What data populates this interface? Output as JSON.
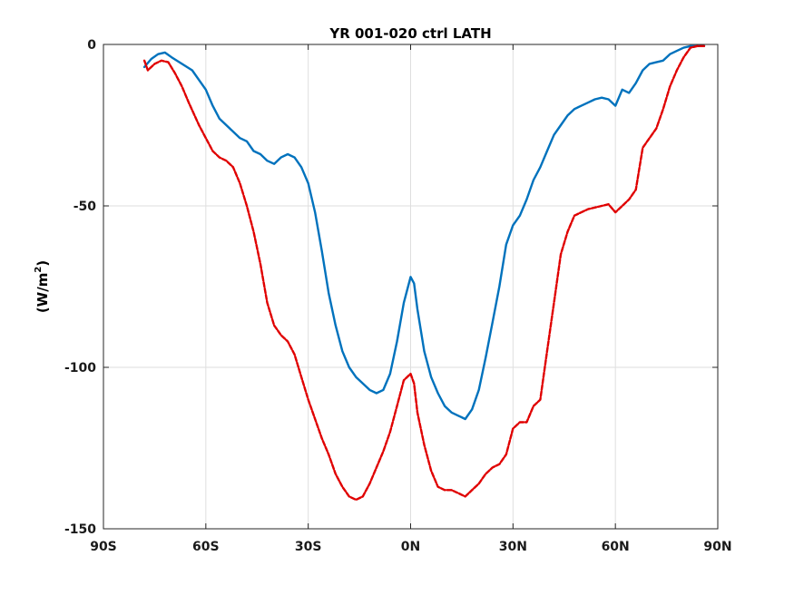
{
  "chart_data": {
    "type": "line",
    "title": "YR 001-020 ctrl LATH",
    "xlabel": "",
    "ylabel": "(W/m",
    "ylabel_sup": "2",
    "ylabel_close": ")",
    "xlim": [
      -90,
      90
    ],
    "ylim": [
      -150,
      0
    ],
    "x_ticks": [
      -90,
      -60,
      -30,
      0,
      30,
      60,
      90
    ],
    "x_tick_labels": [
      "90S",
      "60S",
      "30S",
      "0N",
      "30N",
      "60N",
      "90N"
    ],
    "y_ticks": [
      -150,
      -100,
      -50,
      0
    ],
    "y_tick_labels": [
      "-150",
      "-100",
      "-50",
      "0"
    ],
    "grid": true,
    "legend": "none",
    "series": [
      {
        "color": "#0072bd",
        "style": "solid",
        "points": [
          [
            -78,
            -7
          ],
          [
            -76,
            -4.5
          ],
          [
            -74,
            -3
          ],
          [
            -72,
            -2.5
          ],
          [
            -70,
            -4
          ],
          [
            -67,
            -6
          ],
          [
            -64,
            -8
          ],
          [
            -62,
            -11
          ],
          [
            -60,
            -14
          ],
          [
            -58,
            -19
          ],
          [
            -56,
            -23
          ],
          [
            -54,
            -25
          ],
          [
            -52,
            -27
          ],
          [
            -50,
            -29
          ],
          [
            -48,
            -30
          ],
          [
            -46,
            -33
          ],
          [
            -44,
            -34
          ],
          [
            -42,
            -36
          ],
          [
            -40,
            -37
          ],
          [
            -38,
            -35
          ],
          [
            -36,
            -34
          ],
          [
            -34,
            -35
          ],
          [
            -32,
            -38
          ],
          [
            -30,
            -43
          ],
          [
            -28,
            -52
          ],
          [
            -26,
            -64
          ],
          [
            -24,
            -77
          ],
          [
            -22,
            -87
          ],
          [
            -20,
            -95
          ],
          [
            -18,
            -100
          ],
          [
            -16,
            -103
          ],
          [
            -14,
            -105
          ],
          [
            -12,
            -107
          ],
          [
            -10,
            -108
          ],
          [
            -8,
            -107
          ],
          [
            -6,
            -102
          ],
          [
            -4,
            -92
          ],
          [
            -2,
            -80
          ],
          [
            0,
            -72
          ],
          [
            1,
            -74
          ],
          [
            2,
            -82
          ],
          [
            4,
            -95
          ],
          [
            6,
            -103
          ],
          [
            8,
            -108
          ],
          [
            10,
            -112
          ],
          [
            12,
            -114
          ],
          [
            14,
            -115
          ],
          [
            16,
            -116
          ],
          [
            18,
            -113
          ],
          [
            20,
            -107
          ],
          [
            22,
            -97
          ],
          [
            24,
            -86
          ],
          [
            26,
            -75
          ],
          [
            28,
            -62
          ],
          [
            30,
            -56
          ],
          [
            32,
            -53
          ],
          [
            34,
            -48
          ],
          [
            36,
            -42
          ],
          [
            38,
            -38
          ],
          [
            40,
            -33
          ],
          [
            42,
            -28
          ],
          [
            44,
            -25
          ],
          [
            46,
            -22
          ],
          [
            48,
            -20
          ],
          [
            50,
            -19
          ],
          [
            52,
            -18
          ],
          [
            54,
            -17
          ],
          [
            56,
            -16.5
          ],
          [
            58,
            -17
          ],
          [
            60,
            -19
          ],
          [
            62,
            -14
          ],
          [
            64,
            -15
          ],
          [
            66,
            -12
          ],
          [
            68,
            -8
          ],
          [
            70,
            -6
          ],
          [
            72,
            -5.5
          ],
          [
            74,
            -5
          ],
          [
            76,
            -3
          ],
          [
            78,
            -2
          ],
          [
            80,
            -1
          ],
          [
            82,
            -0.5
          ],
          [
            84,
            -0.5
          ],
          [
            86,
            -0.5
          ]
        ]
      },
      {
        "color": "#e00000",
        "style": "dashed",
        "points": [
          [
            -78,
            -5
          ],
          [
            -77,
            -8
          ],
          [
            -75,
            -6
          ],
          [
            -73,
            -5
          ],
          [
            -71,
            -5.5
          ],
          [
            -69,
            -9
          ],
          [
            -67,
            -13
          ],
          [
            -65,
            -18
          ],
          [
            -62,
            -25
          ],
          [
            -60,
            -29
          ],
          [
            -58,
            -33
          ],
          [
            -56,
            -35
          ],
          [
            -54,
            -36
          ],
          [
            -52,
            -38
          ],
          [
            -50,
            -43
          ],
          [
            -48,
            -50
          ],
          [
            -46,
            -58
          ],
          [
            -44,
            -68
          ],
          [
            -42,
            -80
          ],
          [
            -40,
            -87
          ],
          [
            -38,
            -90
          ],
          [
            -36,
            -92
          ],
          [
            -34,
            -96
          ],
          [
            -32,
            -103
          ],
          [
            -30,
            -110
          ],
          [
            -28,
            -116
          ],
          [
            -26,
            -122
          ],
          [
            -24,
            -127
          ],
          [
            -22,
            -133
          ],
          [
            -20,
            -137
          ],
          [
            -18,
            -140
          ],
          [
            -16,
            -141
          ],
          [
            -14,
            -140
          ],
          [
            -12,
            -136
          ],
          [
            -10,
            -131
          ],
          [
            -8,
            -126
          ],
          [
            -6,
            -120
          ],
          [
            -4,
            -112
          ],
          [
            -2,
            -104
          ],
          [
            0,
            -102
          ],
          [
            1,
            -105
          ],
          [
            2,
            -114
          ],
          [
            4,
            -124
          ],
          [
            6,
            -132
          ],
          [
            8,
            -137
          ],
          [
            10,
            -138
          ],
          [
            12,
            -138
          ],
          [
            14,
            -139
          ],
          [
            16,
            -140
          ],
          [
            18,
            -138
          ],
          [
            20,
            -136
          ],
          [
            22,
            -133
          ],
          [
            24,
            -131
          ],
          [
            26,
            -130
          ],
          [
            28,
            -127
          ],
          [
            30,
            -119
          ],
          [
            32,
            -117
          ],
          [
            34,
            -117
          ],
          [
            36,
            -112
          ],
          [
            38,
            -110
          ],
          [
            40,
            -95
          ],
          [
            42,
            -80
          ],
          [
            44,
            -65
          ],
          [
            46,
            -58
          ],
          [
            48,
            -53
          ],
          [
            50,
            -52
          ],
          [
            52,
            -51
          ],
          [
            54,
            -50.5
          ],
          [
            56,
            -50
          ],
          [
            58,
            -49.5
          ],
          [
            60,
            -52
          ],
          [
            62,
            -50
          ],
          [
            64,
            -48
          ],
          [
            66,
            -45
          ],
          [
            68,
            -32
          ],
          [
            70,
            -29
          ],
          [
            72,
            -26
          ],
          [
            74,
            -20
          ],
          [
            76,
            -13
          ],
          [
            78,
            -8
          ],
          [
            80,
            -4
          ],
          [
            82,
            -1
          ],
          [
            84,
            -0.5
          ],
          [
            86,
            -0.5
          ]
        ]
      }
    ]
  }
}
